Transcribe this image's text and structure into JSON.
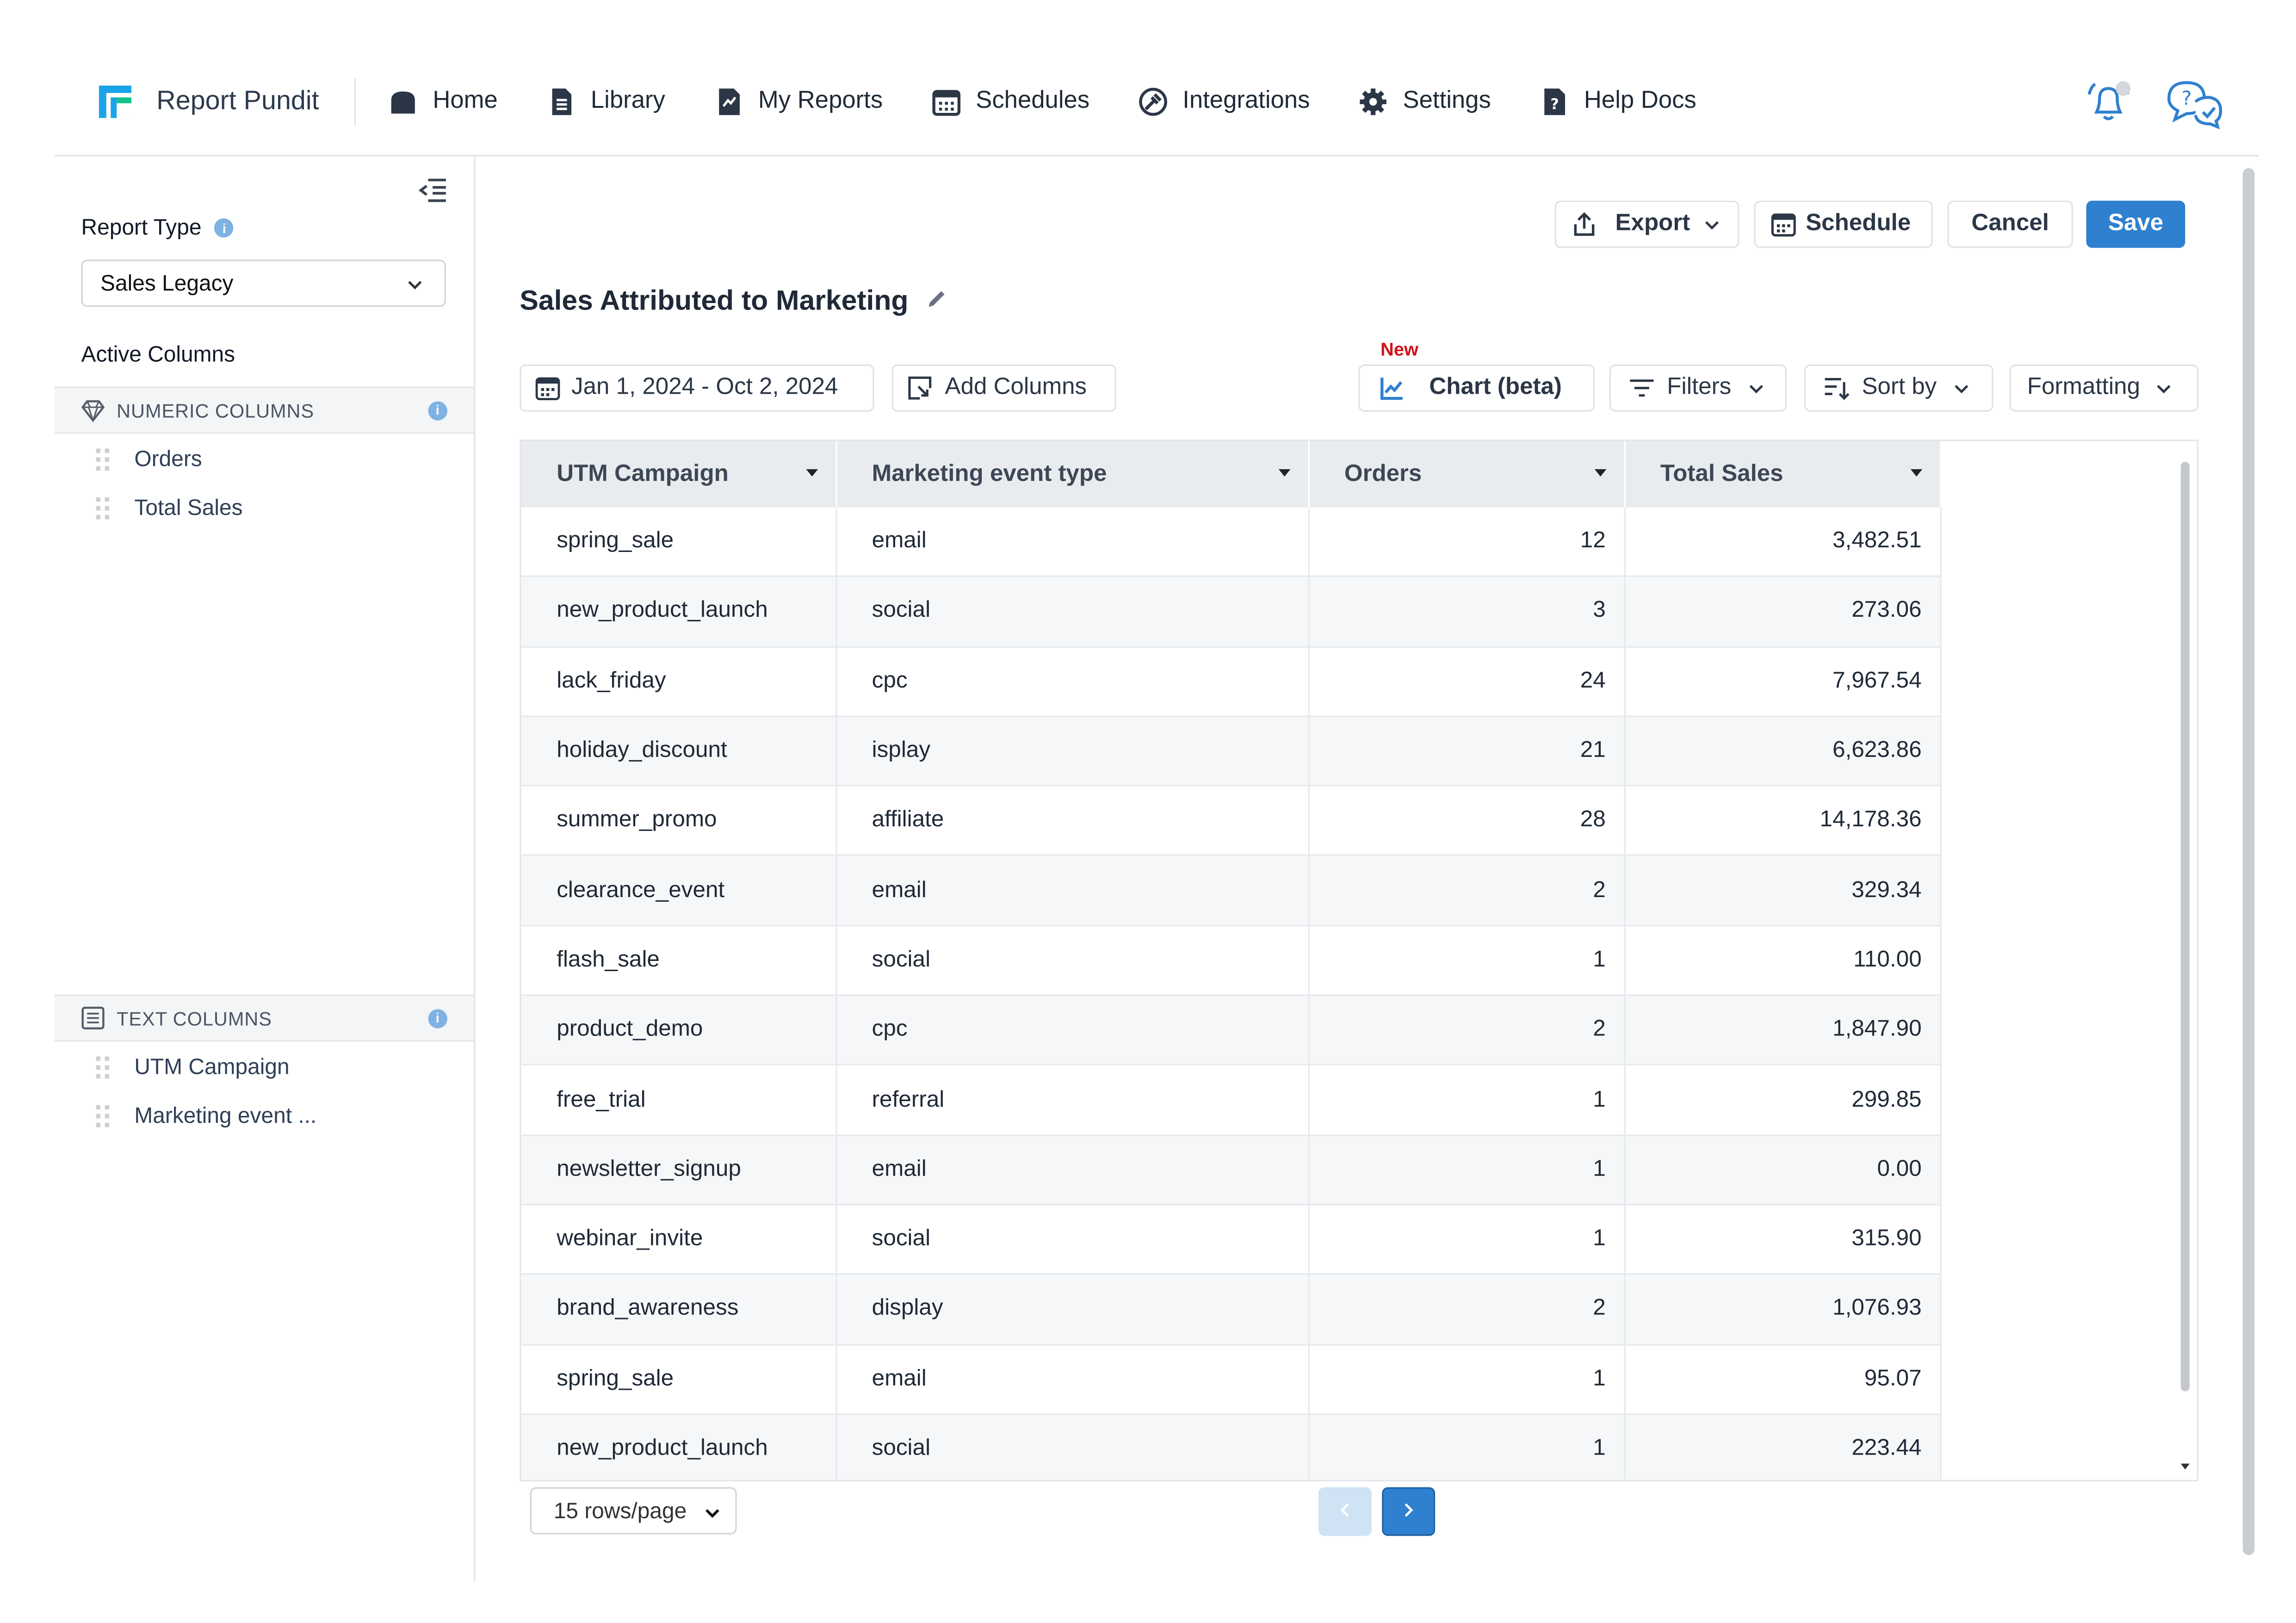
{
  "app": {
    "name": "Report Pundit"
  },
  "nav": {
    "items": [
      {
        "label": "Home",
        "icon": "home-icon"
      },
      {
        "label": "Library",
        "icon": "library-icon"
      },
      {
        "label": "My Reports",
        "icon": "my-reports-icon"
      },
      {
        "label": "Schedules",
        "icon": "calendar-icon"
      },
      {
        "label": "Integrations",
        "icon": "integrations-icon"
      },
      {
        "label": "Settings",
        "icon": "gear-icon"
      },
      {
        "label": "Help Docs",
        "icon": "help-docs-icon"
      }
    ],
    "right_icons": [
      "notification-bell-icon",
      "support-chat-icon"
    ]
  },
  "sidebar": {
    "report_type_label": "Report Type",
    "report_type_value": "Sales Legacy",
    "active_columns_label": "Active Columns",
    "numeric_header": "NUMERIC COLUMNS",
    "numeric_items": [
      "Orders",
      "Total Sales"
    ],
    "text_header": "TEXT COLUMNS",
    "text_items": [
      "UTM Campaign",
      "Marketing event ..."
    ]
  },
  "toolbar": {
    "export": "Export",
    "schedule": "Schedule",
    "cancel": "Cancel",
    "save": "Save"
  },
  "report": {
    "title": "Sales Attributed to Marketing",
    "date_range": "Jan 1, 2024 - Oct 2, 2024",
    "add_columns": "Add Columns",
    "new_tag": "New",
    "chart": "Chart (beta)",
    "filters": "Filters",
    "sort_by": "Sort by",
    "formatting": "Formatting"
  },
  "table": {
    "columns": [
      "UTM Campaign",
      "Marketing event type",
      "Orders",
      "Total Sales"
    ],
    "rows": [
      [
        "spring_sale",
        "email",
        "12",
        "3,482.51"
      ],
      [
        "new_product_launch",
        "social",
        "3",
        "273.06"
      ],
      [
        "lack_friday",
        "cpc",
        "24",
        "7,967.54"
      ],
      [
        "holiday_discount",
        "isplay",
        "21",
        "6,623.86"
      ],
      [
        "summer_promo",
        "affiliate",
        "28",
        "14,178.36"
      ],
      [
        "clearance_event",
        "email",
        "2",
        "329.34"
      ],
      [
        "flash_sale",
        "social",
        "1",
        "110.00"
      ],
      [
        "product_demo",
        "cpc",
        "2",
        "1,847.90"
      ],
      [
        "free_trial",
        "referral",
        "1",
        "299.85"
      ],
      [
        "newsletter_signup",
        "email",
        "1",
        "0.00"
      ],
      [
        "webinar_invite",
        "social",
        "1",
        "315.90"
      ],
      [
        "brand_awareness",
        "display",
        "2",
        "1,076.93"
      ],
      [
        "spring_sale",
        "email",
        "1",
        "95.07"
      ],
      [
        "new_product_launch",
        "social",
        "1",
        "223.44"
      ]
    ]
  },
  "pagination": {
    "rows_per_page": "15 rows/page",
    "options": [
      "15 rows/page"
    ]
  },
  "colors": {
    "accent": "#2f80cf",
    "new_tag": "#d0141a",
    "header_bg": "#e9ecef"
  }
}
